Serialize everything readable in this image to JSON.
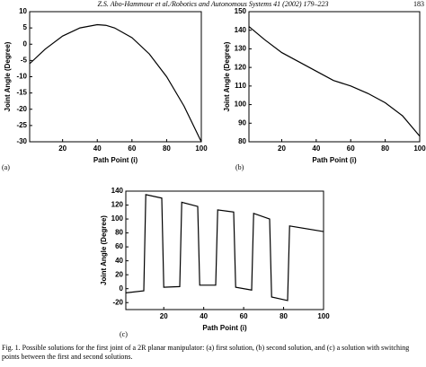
{
  "header": {
    "running_title": "Z.S. Abo-Hammour et al./Robotics and Autonomous Systems 41 (2002) 179–223",
    "page_number": "183"
  },
  "chart_data": [
    {
      "type": "line",
      "panel_label": "(a)",
      "x_label": "Path Point (i)",
      "y_label": "Joint Angle (Degree)",
      "color": "#000000",
      "x": [
        1,
        10,
        20,
        30,
        40,
        45,
        50,
        60,
        70,
        80,
        90,
        100
      ],
      "values": [
        -6,
        -1.5,
        2.5,
        5,
        6,
        5.8,
        5,
        2,
        -3,
        -10,
        -19,
        -30
      ],
      "xlim": [
        1,
        100
      ],
      "ylim": [
        -30,
        10
      ],
      "xticks": [
        20,
        40,
        60,
        80,
        100
      ],
      "yticks": [
        -30,
        -25,
        -20,
        -15,
        -10,
        -5,
        0,
        5,
        10
      ]
    },
    {
      "type": "line",
      "panel_label": "(b)",
      "x_label": "Path Point (i)",
      "y_label": "Joint Angle (Degree)",
      "color": "#000000",
      "x": [
        1,
        10,
        20,
        30,
        40,
        50,
        60,
        70,
        80,
        90,
        100
      ],
      "values": [
        142,
        135,
        128,
        123,
        118,
        113,
        110,
        106,
        101,
        94,
        83
      ],
      "xlim": [
        1,
        100
      ],
      "ylim": [
        80,
        150
      ],
      "xticks": [
        20,
        40,
        60,
        80,
        100
      ],
      "yticks": [
        80,
        90,
        100,
        110,
        120,
        130,
        140,
        150
      ]
    },
    {
      "type": "line",
      "panel_label": "(c)",
      "x_label": "Path Point (i)",
      "y_label": "Joint Angle (Degree)",
      "color": "#000000",
      "x": [
        1,
        10,
        11,
        19,
        20,
        28,
        29,
        37,
        38,
        46,
        47,
        55,
        56,
        64,
        65,
        73,
        74,
        82,
        83,
        100
      ],
      "values": [
        -6,
        -3,
        135,
        130,
        2,
        3,
        124,
        118,
        5,
        5,
        113,
        110,
        2,
        -2,
        108,
        100,
        -12,
        -17,
        90,
        82
      ],
      "xlim": [
        1,
        100
      ],
      "ylim": [
        -30,
        140
      ],
      "xticks": [
        20,
        40,
        60,
        80,
        100
      ],
      "yticks": [
        -20,
        0,
        20,
        40,
        60,
        80,
        100,
        120,
        140
      ]
    }
  ],
  "caption": "Fig. 1. Possible solutions for the first joint of a 2R planar manipulator: (a) first solution, (b) second solution, and (c) a solution with switching points between the first and second solutions."
}
